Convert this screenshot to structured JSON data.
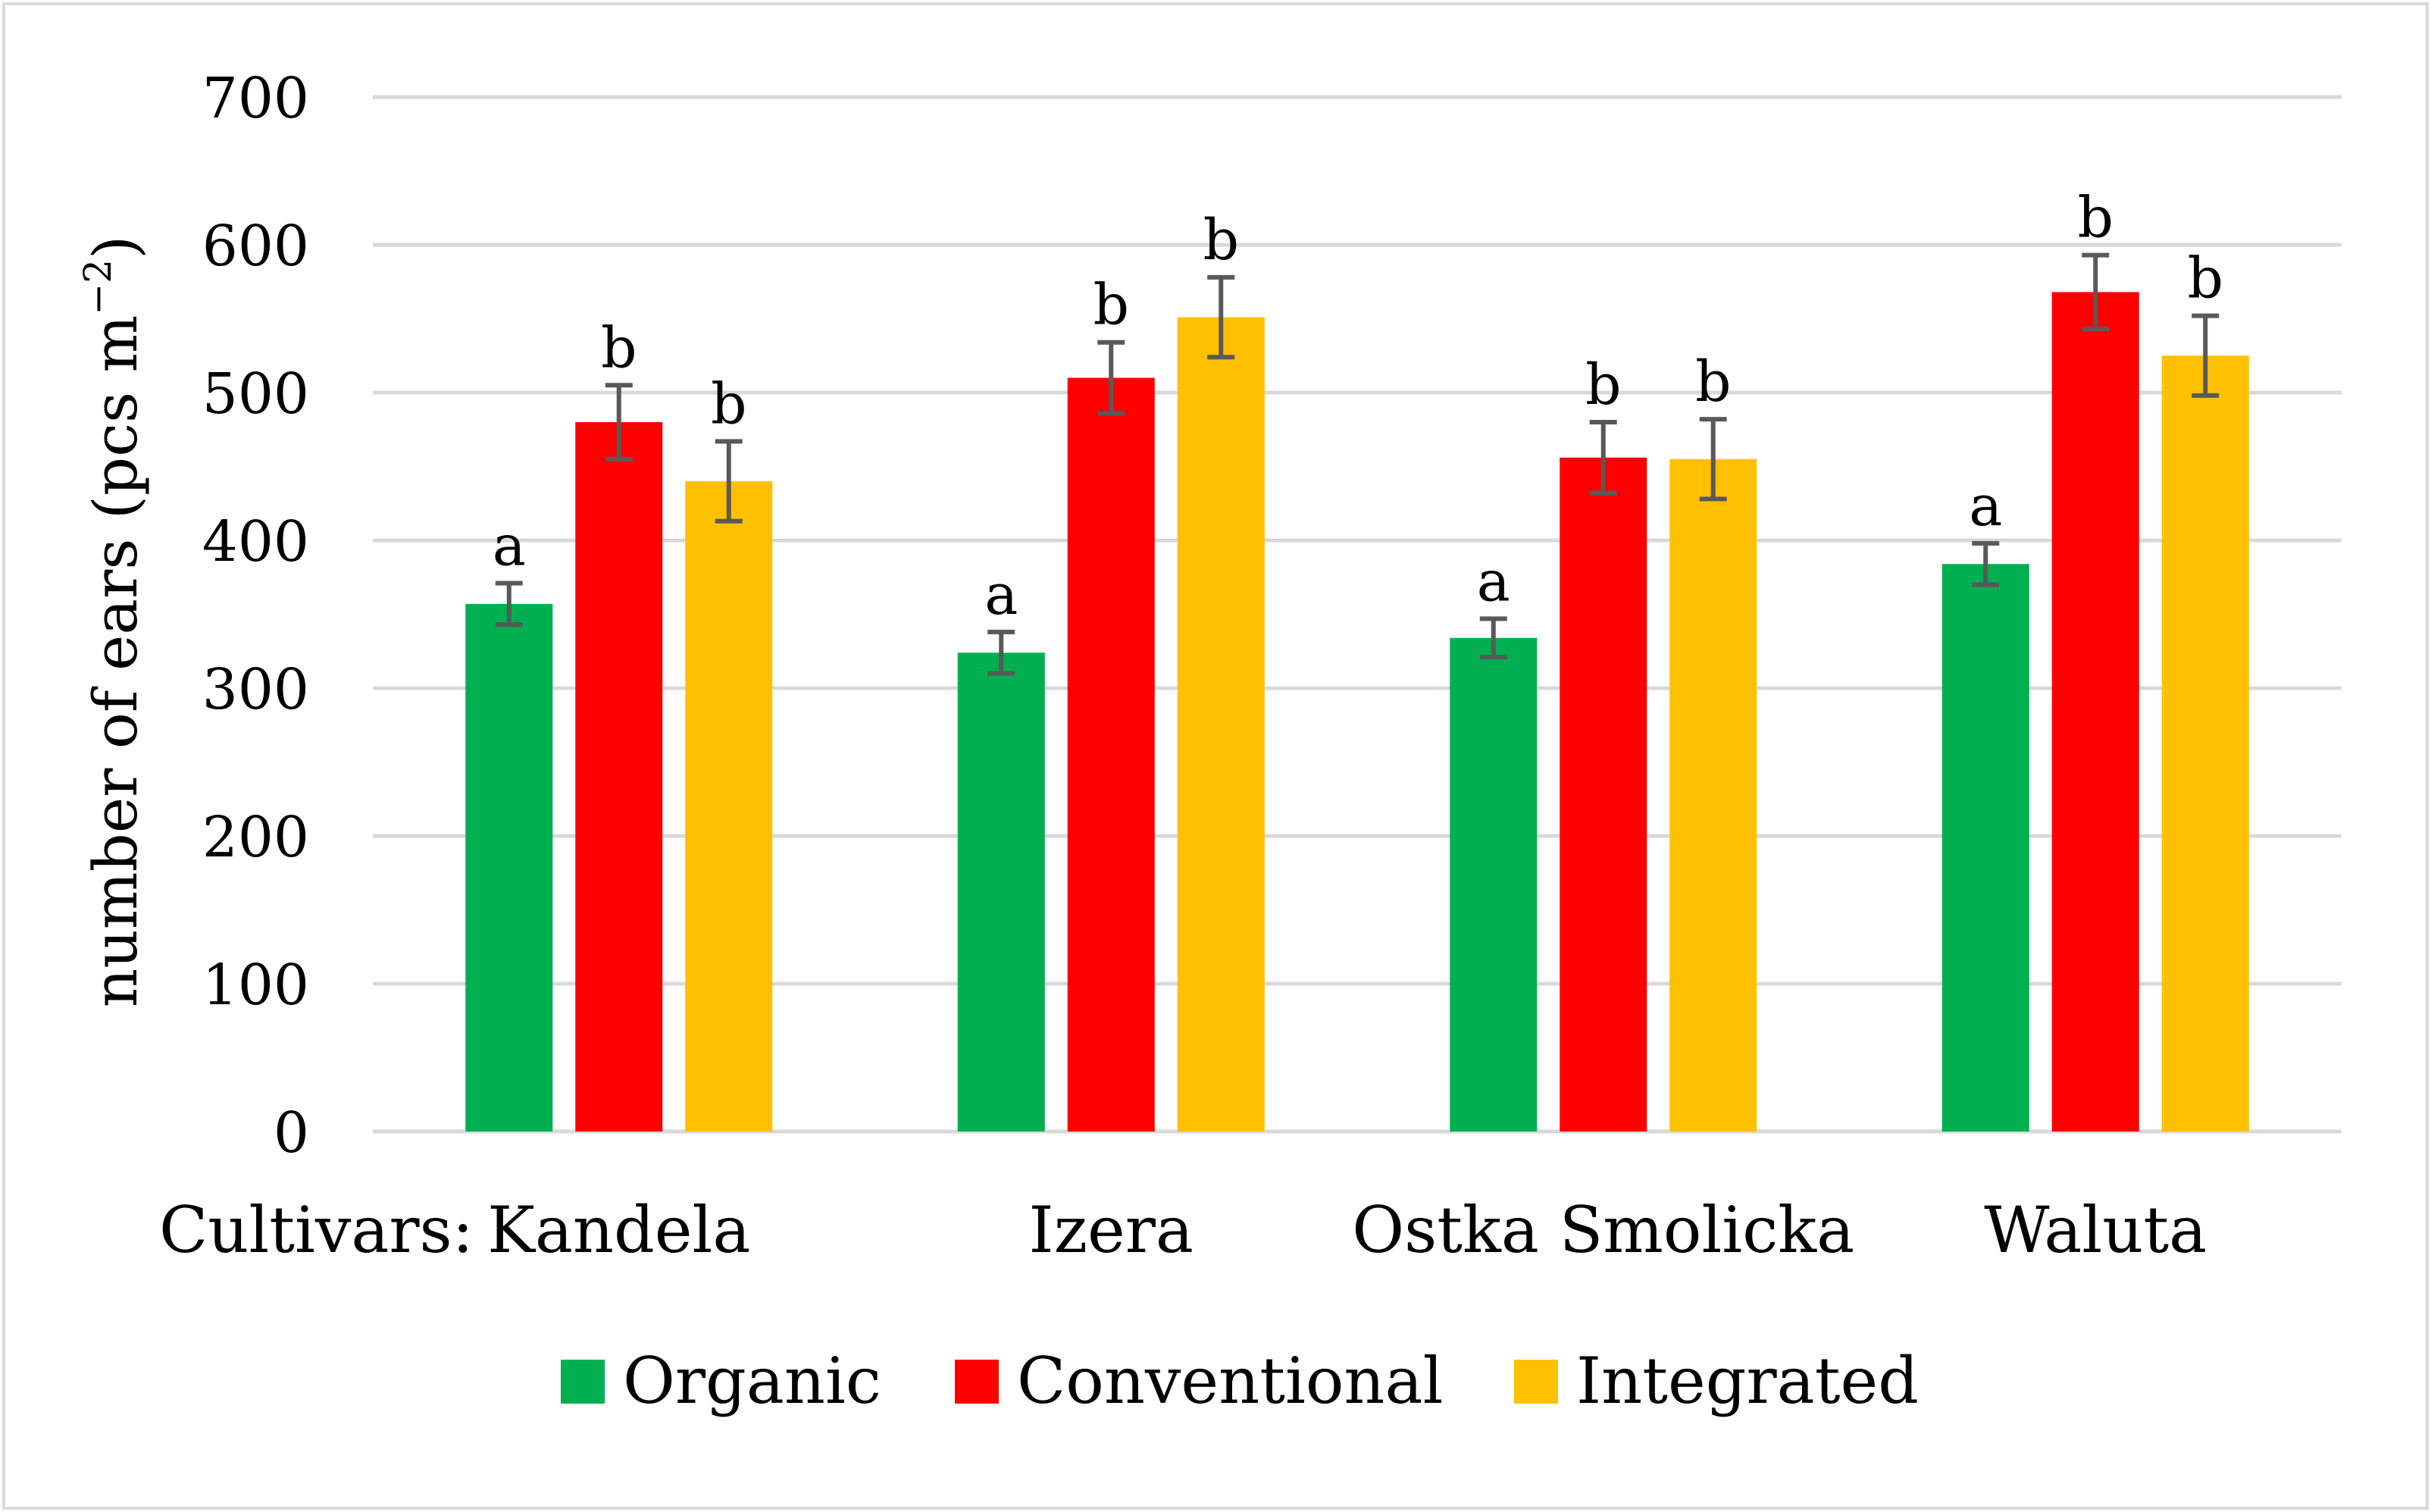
{
  "chart_data": {
    "type": "bar",
    "title": "",
    "xlabel": "",
    "x_prefix": "Cultivars:",
    "ylabel": "number of ears (pcs m",
    "ylabel_sup": "−2",
    "ylabel_close": ")",
    "ylim": [
      0,
      700
    ],
    "yticks": [
      0,
      100,
      200,
      300,
      400,
      500,
      600,
      700
    ],
    "grid": true,
    "legend_position": "bottom",
    "categories": [
      "Kandela",
      "Izera",
      "Ostka Smolicka",
      "Waluta"
    ],
    "series": [
      {
        "name": "Organic",
        "color": "#00b050",
        "values": [
          357,
          324,
          334,
          384
        ],
        "errors": [
          14,
          14,
          13,
          14
        ],
        "letters": [
          "a",
          "a",
          "a",
          "a"
        ]
      },
      {
        "name": "Conventional",
        "color": "#ff0000",
        "values": [
          480,
          510,
          456,
          568
        ],
        "errors": [
          25,
          24,
          24,
          25
        ],
        "letters": [
          "b",
          "b",
          "b",
          "b"
        ]
      },
      {
        "name": "Integrated",
        "color": "#ffc000",
        "values": [
          440,
          551,
          455,
          525
        ],
        "errors": [
          27,
          27,
          27,
          27
        ],
        "letters": [
          "b",
          "b",
          "b",
          "b"
        ]
      }
    ]
  }
}
